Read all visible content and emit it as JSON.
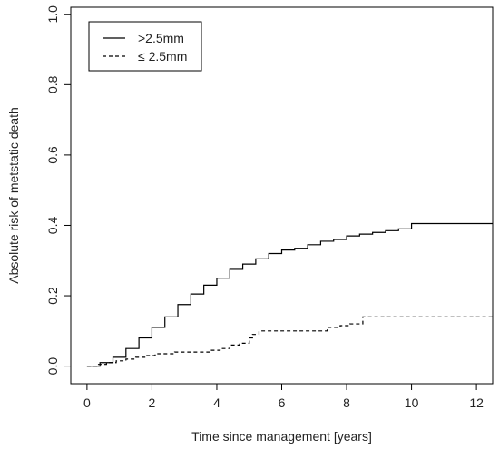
{
  "chart_data": {
    "type": "line",
    "title": "",
    "xlabel": "Time since management [years]",
    "ylabel": "Absolute risk of metstatic death",
    "xlim": [
      -0.5,
      12.5
    ],
    "ylim": [
      -0.05,
      1.02
    ],
    "xticks": [
      0,
      2,
      4,
      6,
      8,
      10,
      12
    ],
    "yticks": [
      0.0,
      0.2,
      0.4,
      0.6,
      0.8,
      1.0
    ],
    "xtick_labels": [
      "0",
      "2",
      "4",
      "6",
      "8",
      "10",
      "12"
    ],
    "ytick_labels": [
      "0.0",
      "0.2",
      "0.4",
      "0.6",
      "0.8",
      "1.0"
    ],
    "grid": false,
    "legend_position": "top-left",
    "series": [
      {
        "name": ">2.5mm",
        "style": "solid",
        "color": "#000000",
        "x": [
          0,
          0.4,
          0.8,
          1.2,
          1.6,
          2.0,
          2.4,
          2.8,
          3.2,
          3.6,
          4.0,
          4.4,
          4.8,
          5.2,
          5.6,
          6.0,
          6.4,
          6.8,
          7.2,
          7.6,
          8.0,
          8.4,
          8.8,
          9.2,
          9.6,
          10.0,
          10.4,
          11.0,
          12.0,
          12.5
        ],
        "y": [
          0.0,
          0.01,
          0.025,
          0.05,
          0.08,
          0.11,
          0.14,
          0.175,
          0.205,
          0.23,
          0.25,
          0.275,
          0.29,
          0.305,
          0.32,
          0.33,
          0.335,
          0.345,
          0.355,
          0.36,
          0.37,
          0.375,
          0.38,
          0.385,
          0.39,
          0.405,
          0.405,
          0.405,
          0.405,
          0.405
        ]
      },
      {
        "name": "≤ 2.5mm",
        "style": "dashed",
        "color": "#000000",
        "x": [
          0,
          0.3,
          0.6,
          0.9,
          1.2,
          1.5,
          1.8,
          2.1,
          2.4,
          2.7,
          3.0,
          3.4,
          3.8,
          4.1,
          4.4,
          4.7,
          5.0,
          5.1,
          5.3,
          6.0,
          7.0,
          7.4,
          7.8,
          8.1,
          8.5,
          9.0,
          10.0,
          11.0,
          12.0,
          12.5
        ],
        "y": [
          0.0,
          0.005,
          0.01,
          0.015,
          0.02,
          0.025,
          0.03,
          0.035,
          0.035,
          0.04,
          0.04,
          0.04,
          0.045,
          0.05,
          0.06,
          0.065,
          0.08,
          0.09,
          0.1,
          0.1,
          0.1,
          0.11,
          0.115,
          0.12,
          0.14,
          0.14,
          0.14,
          0.14,
          0.14,
          0.14
        ]
      }
    ]
  }
}
